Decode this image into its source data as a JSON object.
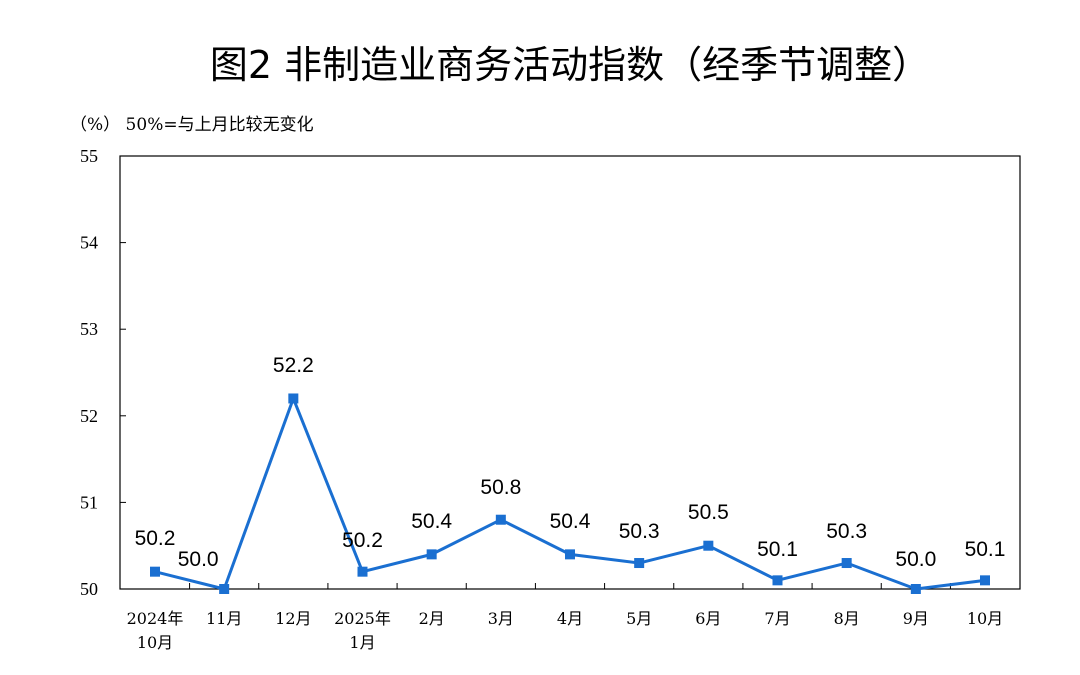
{
  "chart_data": {
    "type": "line",
    "title": "图2 非制造业商务活动指数（经季节调整）",
    "unit_note": "（%） 50%=与上月比较无变化",
    "categories": [
      [
        "2024年",
        "10月"
      ],
      [
        "11月"
      ],
      [
        "12月"
      ],
      [
        "2025年",
        "1月"
      ],
      [
        "2月"
      ],
      [
        "3月"
      ],
      [
        "4月"
      ],
      [
        "5月"
      ],
      [
        "6月"
      ],
      [
        "7月"
      ],
      [
        "8月"
      ],
      [
        "9月"
      ],
      [
        "10月"
      ]
    ],
    "values": [
      50.2,
      50.0,
      52.2,
      50.2,
      50.4,
      50.8,
      50.4,
      50.3,
      50.5,
      50.1,
      50.3,
      50.0,
      50.1
    ],
    "data_labels": [
      "50.2",
      "50.0",
      "52.2",
      "50.2",
      "50.4",
      "50.8",
      "50.4",
      "50.3",
      "50.5",
      "50.1",
      "50.3",
      "50.0",
      "50.1"
    ],
    "ylim": [
      50,
      55
    ],
    "yticks": [
      50,
      51,
      52,
      53,
      54,
      55
    ],
    "ytick_labels": [
      "50",
      "51",
      "52",
      "53",
      "54",
      "55"
    ],
    "grid": false,
    "legend": "none",
    "line_color": "#1a6fd1",
    "marker_color": "#1a6fd1",
    "axis_color": "#000000",
    "marker": "square"
  }
}
